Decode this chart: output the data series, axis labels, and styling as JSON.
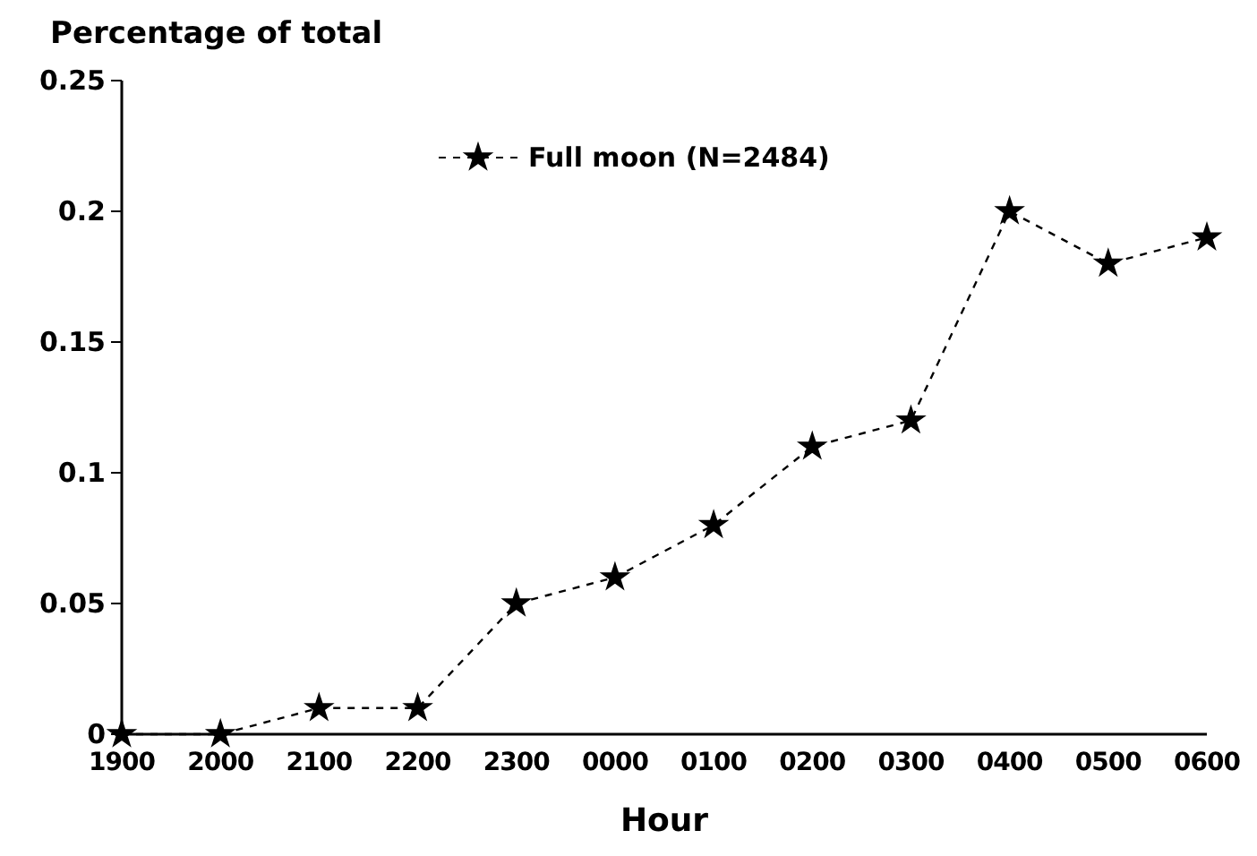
{
  "chart_data": {
    "type": "line",
    "ylabel": "Percentage of total",
    "xlabel": "Hour",
    "categories": [
      "1900",
      "2000",
      "2100",
      "2200",
      "2300",
      "0000",
      "0100",
      "0200",
      "0300",
      "0400",
      "0500",
      "0600"
    ],
    "series": [
      {
        "name": "Full moon (N=2484)",
        "color": "#000000",
        "values": [
          0,
          0,
          0.01,
          0.01,
          0.05,
          0.06,
          0.08,
          0.11,
          0.12,
          0.2,
          0.18,
          0.19
        ]
      }
    ],
    "ylim": [
      0,
      0.25
    ],
    "yticks": [
      0,
      0.05,
      0.1,
      0.15,
      0.2,
      0.25
    ],
    "marker": "star",
    "line_style": "dashed",
    "grid": false,
    "legend": "top"
  }
}
